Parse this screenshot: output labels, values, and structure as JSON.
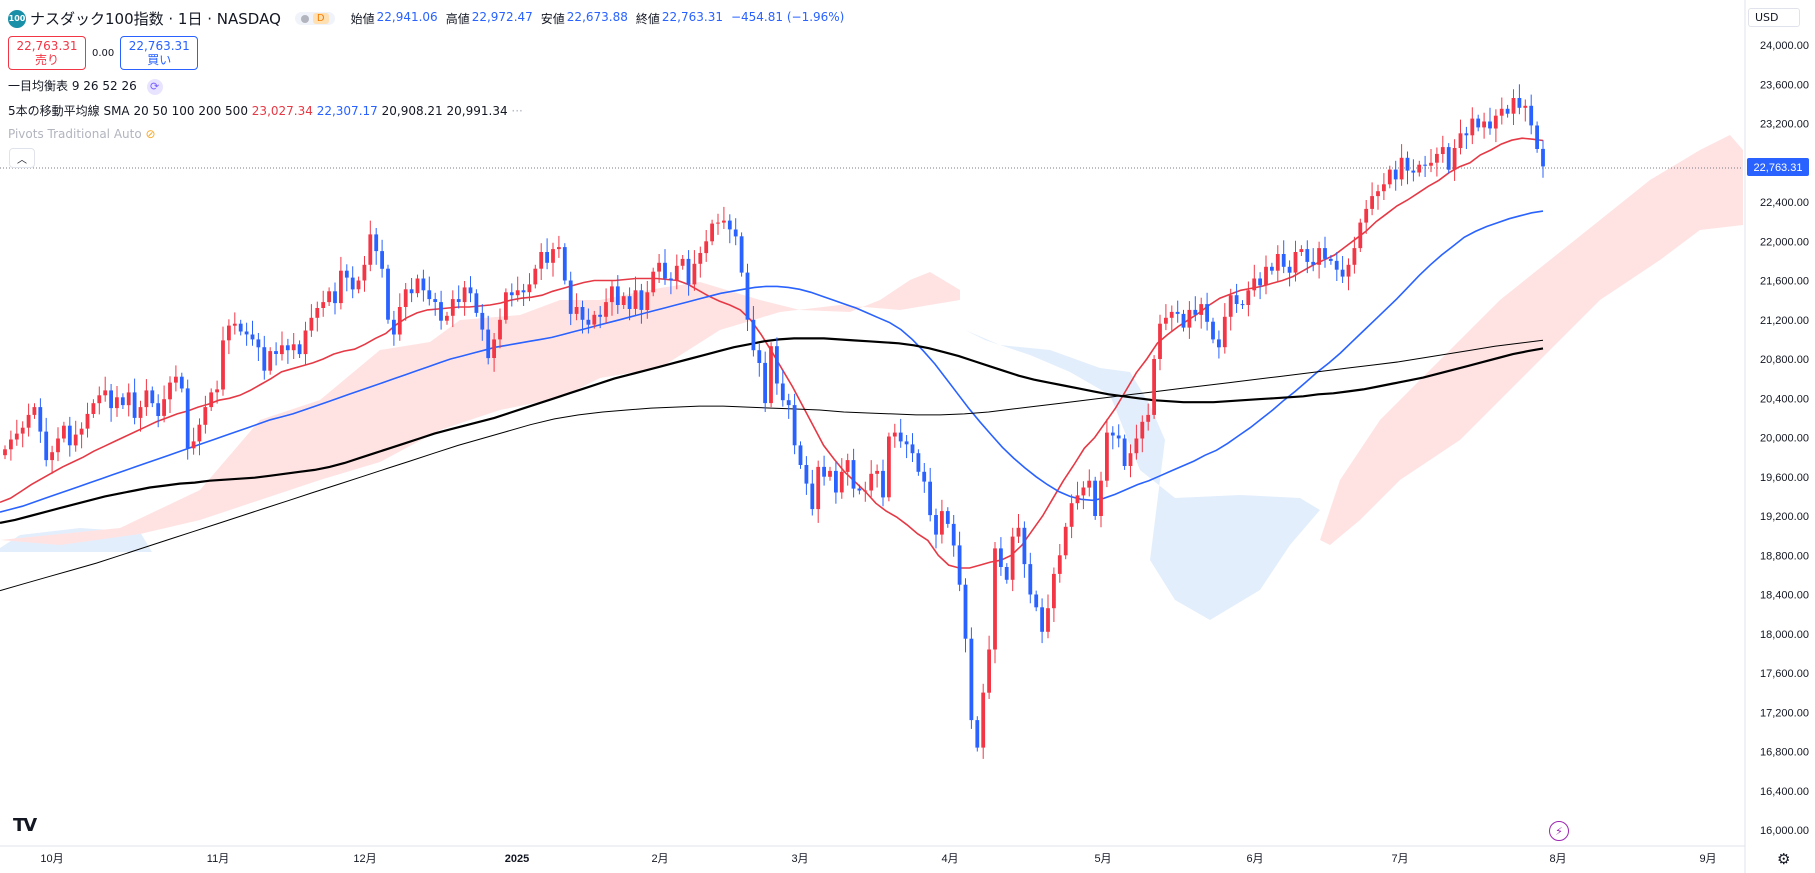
{
  "header": {
    "logo_text": "100",
    "symbol": "ナスダック100指数 · 1日 · NASDAQ",
    "badge_d": "D",
    "ohlc": [
      {
        "label": "始値",
        "value": "22,941.06"
      },
      {
        "label": "高値",
        "value": "22,972.47"
      },
      {
        "label": "安値",
        "value": "22,673.88"
      },
      {
        "label": "終値",
        "value": "22,763.31"
      },
      {
        "label": "",
        "value": "−454.81 (−1.96%)"
      }
    ]
  },
  "trade": {
    "sell_price": "22,763.31",
    "sell_label": "売り",
    "spread": "0.00",
    "buy_price": "22,763.31",
    "buy_label": "買い"
  },
  "indicators": {
    "ichimoku": "一目均衡表",
    "ichimoku_params": "9 26 52 26",
    "sma": "5本の移動平均線 SMA 20 50 100 200 500",
    "sma_values": [
      "23,027.34",
      "22,307.17",
      "20,908.21",
      "20,991.34"
    ],
    "more": "···",
    "pivots": "Pivots Traditional Auto"
  },
  "currency": "USD",
  "tv_logo": "TV",
  "icons": {
    "bolt": "lightning-icon",
    "gear": "gear-icon",
    "collapse": "chevron-up-icon"
  },
  "colors": {
    "up": "#f23645",
    "down": "#2962ff",
    "sma20": "#e53945",
    "sma50": "#2962ff",
    "sma200": "#000000",
    "sma500": "#000000",
    "cloud_bull": "#ffe3e3",
    "cloud_bear": "#e3eefc"
  },
  "chart_data": {
    "type": "candlestick",
    "y_ticks": [
      "24,000.00",
      "23,600.00",
      "23,200.00",
      "22,800.00",
      "22,400.00",
      "22,000.00",
      "21,600.00",
      "21,200.00",
      "20,800.00",
      "20,400.00",
      "20,000.00",
      "19,600.00",
      "19,200.00",
      "18,800.00",
      "18,400.00",
      "18,000.00",
      "17,600.00",
      "17,200.00",
      "16,800.00",
      "16,400.00",
      "16,000.00"
    ],
    "ylim": [
      15950,
      24100
    ],
    "x_labels": [
      "10月",
      "11月",
      "12月",
      "2025",
      "2月",
      "3月",
      "4月",
      "5月",
      "6月",
      "7月",
      "8月",
      "9月"
    ],
    "last_price_label": "22,763.31",
    "last_price": 22763,
    "close": [
      19880,
      19980,
      20040,
      20100,
      20230,
      20310,
      20060,
      19770,
      19850,
      19990,
      20120,
      19920,
      20030,
      20090,
      20240,
      20350,
      20430,
      20480,
      20300,
      20410,
      20330,
      20460,
      20200,
      20310,
      20480,
      20350,
      20220,
      20390,
      20560,
      20620,
      20500,
      19890,
      19960,
      20130,
      20310,
      20460,
      20490,
      20990,
      21140,
      21160,
      21080,
      21050,
      21000,
      20920,
      20680,
      20880,
      20850,
      20940,
      20890,
      20950,
      20850,
      21090,
      21220,
      21320,
      21380,
      21490,
      21370,
      21700,
      21630,
      21510,
      21600,
      21760,
      22070,
      21900,
      21720,
      21200,
      21050,
      21330,
      21510,
      21470,
      21620,
      21500,
      21410,
      21380,
      21190,
      21240,
      21410,
      21380,
      21530,
      21470,
      21270,
      21100,
      20810,
      21000,
      21200,
      21480,
      21450,
      21500,
      21480,
      21560,
      21720,
      21890,
      21780,
      21920,
      21940,
      21600,
      21260,
      21330,
      21200,
      21150,
      21250,
      21230,
      21380,
      21540,
      21350,
      21440,
      21310,
      21500,
      21300,
      21480,
      21690,
      21780,
      21620,
      21600,
      21750,
      21820,
      21560,
      21770,
      21880,
      22000,
      22180,
      22190,
      22210,
      22120,
      22050,
      21680,
      21200,
      20890,
      20760,
      20350,
      20930,
      20550,
      20380,
      20330,
      19920,
      19720,
      19530,
      19270,
      19700,
      19600,
      19660,
      19440,
      19650,
      19770,
      19480,
      19460,
      19460,
      19630,
      19660,
      19390,
      20010,
      20050,
      19960,
      19930,
      19840,
      19650,
      19550,
      19210,
      19010,
      19250,
      19120,
      18900,
      18500,
      17950,
      17120,
      16840,
      17400,
      17840,
      18870,
      18680,
      18550,
      18990,
      19080,
      18710,
      18400,
      18270,
      18020,
      18260,
      18610,
      18800,
      19090,
      19330,
      19410,
      19490,
      19560,
      19200,
      19560,
      20050,
      20020,
      19990,
      19710,
      19840,
      19990,
      20160,
      20230,
      20800,
      21160,
      21220,
      21280,
      21260,
      21120,
      21300,
      21250,
      21360,
      21180,
      21000,
      20920,
      21230,
      21450,
      21360,
      21350,
      21500,
      21620,
      21550,
      21740,
      21700,
      21870,
      21740,
      21680,
      21890,
      21920,
      21790,
      21760,
      21930,
      21820,
      21800,
      21710,
      21640,
      21760,
      21930,
      22190,
      22330,
      22460,
      22510,
      22580,
      22730,
      22630,
      22850,
      22720,
      22700,
      22780,
      22770,
      22800,
      22890,
      22960,
      22730,
      22950,
      23100,
      23080,
      23250,
      23160,
      23220,
      23150,
      23280,
      23350,
      23300,
      23460,
      23360,
      23380,
      23180,
      22941,
      22763
    ],
    "series": [
      {
        "name": "SMA 20",
        "color": "#e53945",
        "values": [
          19340,
          19380,
          19450,
          19520,
          19580,
          19640,
          19700,
          19750,
          19800,
          19860,
          19910,
          19960,
          20010,
          20060,
          20110,
          20160,
          20200,
          20240,
          20270,
          20310,
          20340,
          20380,
          20400,
          20430,
          20480,
          20540,
          20600,
          20670,
          20700,
          20730,
          20760,
          20800,
          20850,
          20880,
          20900,
          20950,
          21010,
          21060,
          21150,
          21220,
          21270,
          21300,
          21310,
          21320,
          21330,
          21330,
          21340,
          21350,
          21370,
          21400,
          21420,
          21430,
          21450,
          21490,
          21520,
          21550,
          21580,
          21600,
          21600,
          21600,
          21610,
          21620,
          21620,
          21620,
          21610,
          21600,
          21560,
          21500,
          21440,
          21390,
          21350,
          21300,
          21200,
          21050,
          20880,
          20700,
          20520,
          20320,
          20120,
          19920,
          19780,
          19650,
          19550,
          19450,
          19330,
          19250,
          19190,
          19110,
          19020,
          18950,
          18800,
          18700,
          18670,
          18670,
          18700,
          18730,
          18750,
          18800,
          18900,
          19050,
          19200,
          19380,
          19560,
          19720,
          19890,
          20000,
          20150,
          20300,
          20480,
          20660,
          20800,
          20960,
          21050,
          21130,
          21200,
          21270,
          21350,
          21420,
          21460,
          21500,
          21520,
          21540,
          21570,
          21600,
          21640,
          21700,
          21760,
          21810,
          21860,
          21940,
          22020,
          22100,
          22200,
          22280,
          22360,
          22420,
          22490,
          22560,
          22620,
          22700,
          22760,
          22800,
          22880,
          22930,
          22990,
          23030,
          23050,
          23040,
          23027
        ]
      },
      {
        "name": "SMA 50",
        "color": "#2962ff",
        "values": [
          19240,
          19270,
          19300,
          19340,
          19380,
          19420,
          19460,
          19500,
          19540,
          19580,
          19620,
          19660,
          19700,
          19740,
          19780,
          19820,
          19860,
          19900,
          19940,
          19980,
          20020,
          20060,
          20100,
          20140,
          20180,
          20210,
          20240,
          20280,
          20320,
          20360,
          20400,
          20440,
          20480,
          20520,
          20560,
          20600,
          20640,
          20680,
          20720,
          20760,
          20800,
          20830,
          20860,
          20890,
          20920,
          20940,
          20960,
          20980,
          21000,
          21020,
          21050,
          21080,
          21110,
          21140,
          21170,
          21200,
          21230,
          21260,
          21290,
          21320,
          21350,
          21380,
          21410,
          21440,
          21470,
          21490,
          21510,
          21530,
          21540,
          21540,
          21530,
          21510,
          21480,
          21440,
          21400,
          21360,
          21320,
          21270,
          21220,
          21170,
          21100,
          21000,
          20880,
          20750,
          20600,
          20450,
          20300,
          20160,
          20030,
          19900,
          19790,
          19690,
          19600,
          19520,
          19450,
          19400,
          19370,
          19360,
          19380,
          19420,
          19470,
          19520,
          19560,
          19610,
          19660,
          19710,
          19760,
          19820,
          19870,
          19940,
          20020,
          20100,
          20190,
          20280,
          20380,
          20470,
          20570,
          20670,
          20760,
          20860,
          20970,
          21080,
          21190,
          21300,
          21410,
          21530,
          21650,
          21760,
          21860,
          21950,
          22040,
          22100,
          22150,
          22190,
          22230,
          22260,
          22290,
          22307
        ]
      },
      {
        "name": "SMA 200",
        "color": "#000000",
        "values": [
          19130,
          19160,
          19200,
          19240,
          19280,
          19320,
          19360,
          19400,
          19430,
          19460,
          19490,
          19510,
          19530,
          19540,
          19560,
          19570,
          19580,
          19590,
          19610,
          19630,
          19650,
          19670,
          19700,
          19740,
          19790,
          19840,
          19890,
          19940,
          19990,
          20040,
          20080,
          20120,
          20160,
          20200,
          20250,
          20300,
          20350,
          20400,
          20450,
          20500,
          20550,
          20600,
          20640,
          20680,
          20720,
          20760,
          20800,
          20840,
          20880,
          20920,
          20950,
          20980,
          21000,
          21010,
          21010,
          21010,
          21000,
          20990,
          20980,
          20970,
          20960,
          20940,
          20910,
          20870,
          20830,
          20780,
          20730,
          20680,
          20630,
          20590,
          20560,
          20530,
          20500,
          20470,
          20440,
          20420,
          20400,
          20380,
          20370,
          20360,
          20360,
          20360,
          20370,
          20380,
          20390,
          20400,
          20410,
          20420,
          20440,
          20450,
          20470,
          20490,
          20520,
          20550,
          20580,
          20610,
          20650,
          20690,
          20730,
          20770,
          20810,
          20850,
          20880,
          20908
        ]
      },
      {
        "name": "SMA 500",
        "color": "#000000",
        "values": [
          18440,
          18510,
          18580,
          18650,
          18720,
          18800,
          18880,
          18960,
          19040,
          19120,
          19200,
          19280,
          19360,
          19440,
          19520,
          19600,
          19680,
          19760,
          19840,
          19920,
          19990,
          20060,
          20130,
          20190,
          20230,
          20260,
          20280,
          20300,
          20310,
          20320,
          20320,
          20310,
          20300,
          20290,
          20280,
          20260,
          20250,
          20240,
          20230,
          20230,
          20240,
          20260,
          20290,
          20320,
          20350,
          20380,
          20410,
          20440,
          20470,
          20500,
          20530,
          20560,
          20590,
          20620,
          20650,
          20680,
          20710,
          20740,
          20770,
          20810,
          20850,
          20890,
          20930,
          20960,
          20991
        ]
      }
    ]
  }
}
